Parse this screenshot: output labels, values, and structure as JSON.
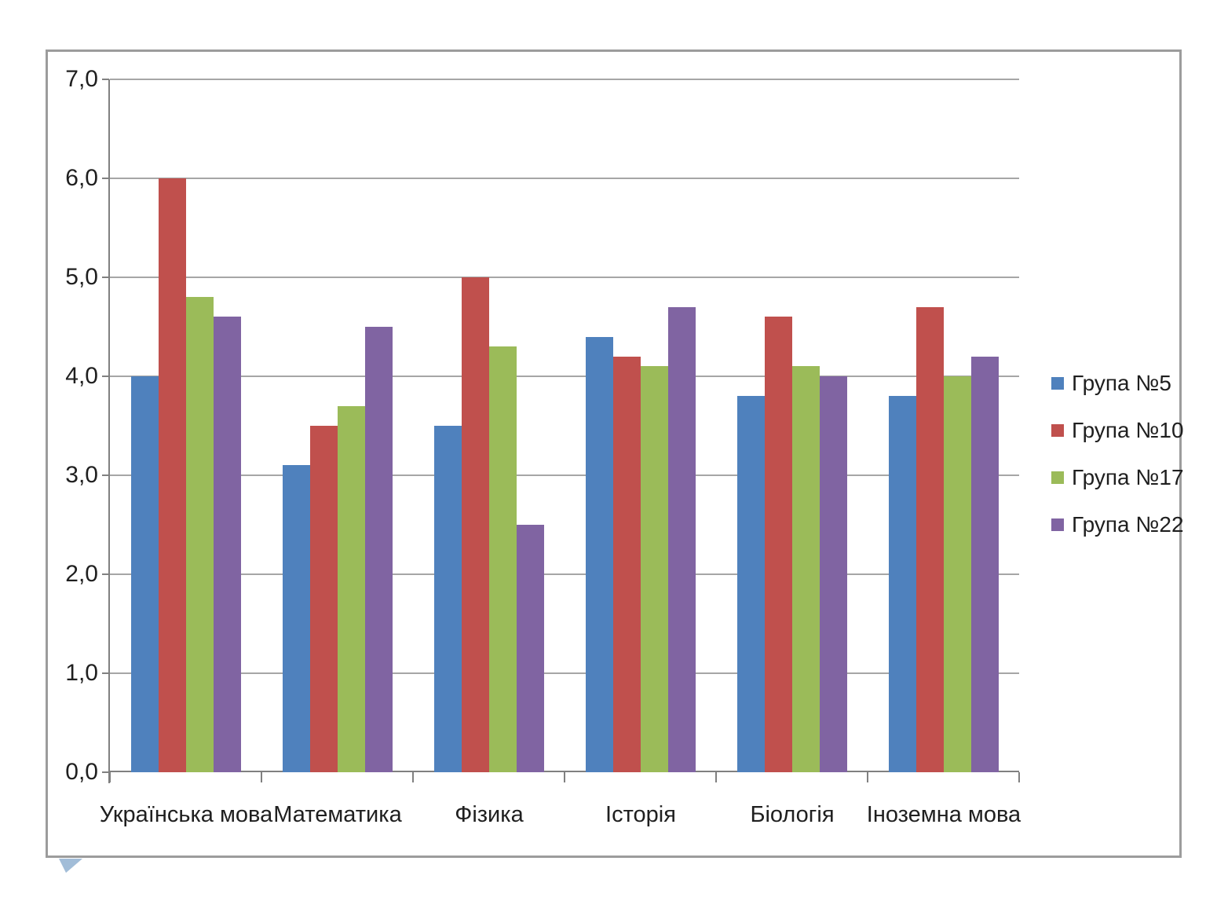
{
  "colors": {
    "series_blue": "#4F81BD",
    "series_red": "#C0504D",
    "series_green": "#9BBB59",
    "series_purple": "#8064A2",
    "gridline": "#a6a6a6",
    "axis": "#808080",
    "frame_border": "#9c9c9c",
    "text": "#1f1f1f",
    "corner_triangle": "#a2bdd8"
  },
  "chart_data": {
    "type": "bar",
    "title": "",
    "xlabel": "",
    "ylabel": "",
    "categories": [
      "Українська мова",
      "Математика",
      "Фізика",
      "Історія",
      "Біологія",
      "Іноземна мова"
    ],
    "series": [
      {
        "name": "Група №5",
        "color": "#4F81BD",
        "values": [
          4.0,
          3.1,
          3.5,
          4.4,
          3.8,
          3.8
        ]
      },
      {
        "name": "Група №10",
        "color": "#C0504D",
        "values": [
          6.0,
          3.5,
          5.0,
          4.2,
          4.6,
          4.7
        ]
      },
      {
        "name": "Група №17",
        "color": "#9BBB59",
        "values": [
          4.8,
          3.7,
          4.3,
          4.1,
          4.1,
          4.0
        ]
      },
      {
        "name": "Група №22",
        "color": "#8064A2",
        "values": [
          4.6,
          4.5,
          2.5,
          4.7,
          4.0,
          4.2
        ]
      }
    ],
    "ylim": [
      0,
      7
    ],
    "ytick_step": 1.0,
    "ytick_labels": [
      "0,0",
      "1,0",
      "2,0",
      "3,0",
      "4,0",
      "5,0",
      "6,0",
      "7,0"
    ],
    "grid": true,
    "legend_position": "right"
  }
}
